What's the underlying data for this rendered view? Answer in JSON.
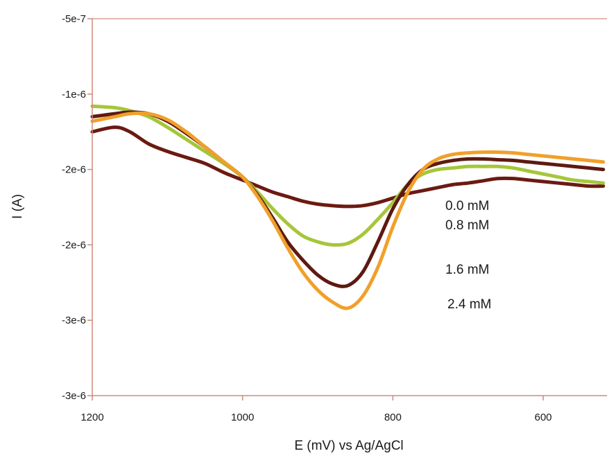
{
  "chart_data": {
    "type": "line",
    "title": "",
    "xlabel": "E (mV) vs Ag/AgCl",
    "ylabel": "I (A)",
    "xlim": [
      1200,
      520
    ],
    "ylim": [
      -3e-06,
      -5e-07
    ],
    "x_ticks": [
      {
        "value": 1200,
        "label": "1200"
      },
      {
        "value": 1000,
        "label": "1000"
      },
      {
        "value": 800,
        "label": "800"
      },
      {
        "value": 600,
        "label": "600"
      }
    ],
    "y_ticks": [
      {
        "value": -5e-07,
        "label": "-5e-7"
      },
      {
        "value": -1e-06,
        "label": "-1e-6"
      },
      {
        "value": -1.5e-06,
        "label": "-2e-6"
      },
      {
        "value": -2e-06,
        "label": "-2e-6"
      },
      {
        "value": -2.5e-06,
        "label": "-3e-6"
      },
      {
        "value": -3e-06,
        "label": "-3e-6"
      }
    ],
    "grid": false,
    "legend_placement": "right",
    "series": [
      {
        "name": "0.0 mM",
        "color": "#6b1a12",
        "points": [
          [
            1200,
            -1.25e-06
          ],
          [
            1170,
            -1.22e-06
          ],
          [
            1150,
            -1.25e-06
          ],
          [
            1125,
            -1.33e-06
          ],
          [
            1100,
            -1.38e-06
          ],
          [
            1075,
            -1.42e-06
          ],
          [
            1050,
            -1.46e-06
          ],
          [
            1025,
            -1.52e-06
          ],
          [
            1000,
            -1.57e-06
          ],
          [
            980,
            -1.61e-06
          ],
          [
            960,
            -1.65e-06
          ],
          [
            940,
            -1.68e-06
          ],
          [
            920,
            -1.71e-06
          ],
          [
            900,
            -1.73e-06
          ],
          [
            880,
            -1.74e-06
          ],
          [
            860,
            -1.745e-06
          ],
          [
            840,
            -1.74e-06
          ],
          [
            820,
            -1.72e-06
          ],
          [
            800,
            -1.69e-06
          ],
          [
            780,
            -1.66e-06
          ],
          [
            760,
            -1.64e-06
          ],
          [
            740,
            -1.62e-06
          ],
          [
            720,
            -1.6e-06
          ],
          [
            700,
            -1.59e-06
          ],
          [
            680,
            -1.575e-06
          ],
          [
            660,
            -1.56e-06
          ],
          [
            640,
            -1.56e-06
          ],
          [
            620,
            -1.57e-06
          ],
          [
            600,
            -1.58e-06
          ],
          [
            580,
            -1.59e-06
          ],
          [
            560,
            -1.6e-06
          ],
          [
            540,
            -1.61e-06
          ],
          [
            520,
            -1.61e-06
          ]
        ]
      },
      {
        "name": "0.8 mM",
        "color": "#a6c63a",
        "points": [
          [
            1200,
            -1.08e-06
          ],
          [
            1170,
            -1.09e-06
          ],
          [
            1150,
            -1.11e-06
          ],
          [
            1125,
            -1.15e-06
          ],
          [
            1100,
            -1.22e-06
          ],
          [
            1075,
            -1.3e-06
          ],
          [
            1050,
            -1.38e-06
          ],
          [
            1025,
            -1.46e-06
          ],
          [
            1000,
            -1.55e-06
          ],
          [
            980,
            -1.65e-06
          ],
          [
            960,
            -1.76e-06
          ],
          [
            940,
            -1.86e-06
          ],
          [
            920,
            -1.94e-06
          ],
          [
            900,
            -1.98e-06
          ],
          [
            880,
            -2e-06
          ],
          [
            860,
            -1.99e-06
          ],
          [
            840,
            -1.93e-06
          ],
          [
            820,
            -1.83e-06
          ],
          [
            800,
            -1.72e-06
          ],
          [
            780,
            -1.6e-06
          ],
          [
            760,
            -1.53e-06
          ],
          [
            740,
            -1.5e-06
          ],
          [
            720,
            -1.49e-06
          ],
          [
            700,
            -1.48e-06
          ],
          [
            680,
            -1.48e-06
          ],
          [
            660,
            -1.48e-06
          ],
          [
            640,
            -1.49e-06
          ],
          [
            620,
            -1.51e-06
          ],
          [
            600,
            -1.53e-06
          ],
          [
            580,
            -1.55e-06
          ],
          [
            560,
            -1.57e-06
          ],
          [
            540,
            -1.58e-06
          ],
          [
            520,
            -1.59e-06
          ]
        ]
      },
      {
        "name": "1.6 mM",
        "color": "#5e1a10",
        "points": [
          [
            1200,
            -1.15e-06
          ],
          [
            1170,
            -1.13e-06
          ],
          [
            1150,
            -1.12e-06
          ],
          [
            1125,
            -1.13e-06
          ],
          [
            1100,
            -1.18e-06
          ],
          [
            1075,
            -1.26e-06
          ],
          [
            1050,
            -1.35e-06
          ],
          [
            1025,
            -1.45e-06
          ],
          [
            1000,
            -1.55e-06
          ],
          [
            980,
            -1.67e-06
          ],
          [
            960,
            -1.82e-06
          ],
          [
            940,
            -1.98e-06
          ],
          [
            920,
            -2.1e-06
          ],
          [
            900,
            -2.2e-06
          ],
          [
            880,
            -2.26e-06
          ],
          [
            860,
            -2.27e-06
          ],
          [
            840,
            -2.18e-06
          ],
          [
            820,
            -1.98e-06
          ],
          [
            800,
            -1.76e-06
          ],
          [
            780,
            -1.6e-06
          ],
          [
            760,
            -1.5e-06
          ],
          [
            740,
            -1.46e-06
          ],
          [
            720,
            -1.44e-06
          ],
          [
            700,
            -1.43e-06
          ],
          [
            680,
            -1.43e-06
          ],
          [
            660,
            -1.435e-06
          ],
          [
            640,
            -1.44e-06
          ],
          [
            620,
            -1.45e-06
          ],
          [
            600,
            -1.46e-06
          ],
          [
            580,
            -1.47e-06
          ],
          [
            560,
            -1.48e-06
          ],
          [
            540,
            -1.49e-06
          ],
          [
            520,
            -1.5e-06
          ]
        ]
      },
      {
        "name": "2.4 mM",
        "color": "#f0a02a",
        "points": [
          [
            1200,
            -1.18e-06
          ],
          [
            1170,
            -1.15e-06
          ],
          [
            1150,
            -1.13e-06
          ],
          [
            1125,
            -1.13e-06
          ],
          [
            1100,
            -1.17e-06
          ],
          [
            1075,
            -1.25e-06
          ],
          [
            1050,
            -1.35e-06
          ],
          [
            1025,
            -1.45e-06
          ],
          [
            1000,
            -1.55e-06
          ],
          [
            980,
            -1.68e-06
          ],
          [
            960,
            -1.84e-06
          ],
          [
            940,
            -2.02e-06
          ],
          [
            920,
            -2.18e-06
          ],
          [
            900,
            -2.3e-06
          ],
          [
            880,
            -2.38e-06
          ],
          [
            860,
            -2.42e-06
          ],
          [
            840,
            -2.34e-06
          ],
          [
            820,
            -2.15e-06
          ],
          [
            800,
            -1.88e-06
          ],
          [
            780,
            -1.65e-06
          ],
          [
            760,
            -1.5e-06
          ],
          [
            740,
            -1.43e-06
          ],
          [
            720,
            -1.4e-06
          ],
          [
            700,
            -1.39e-06
          ],
          [
            680,
            -1.385e-06
          ],
          [
            660,
            -1.385e-06
          ],
          [
            640,
            -1.39e-06
          ],
          [
            620,
            -1.4e-06
          ],
          [
            600,
            -1.41e-06
          ],
          [
            580,
            -1.42e-06
          ],
          [
            560,
            -1.43e-06
          ],
          [
            540,
            -1.44e-06
          ],
          [
            520,
            -1.45e-06
          ]
        ]
      }
    ]
  }
}
